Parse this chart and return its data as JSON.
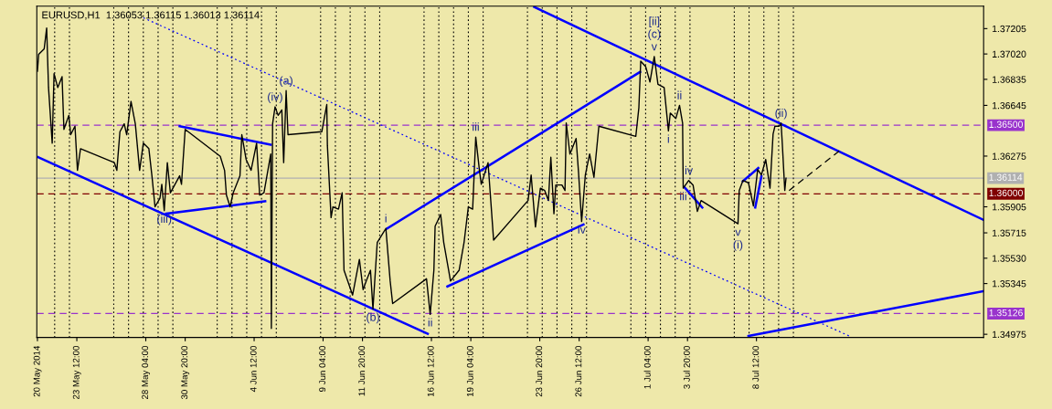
{
  "chart_data": {
    "type": "line",
    "title": "EURUSD,H1  1.36053 1.36115 1.36013 1.36114",
    "xlim": [
      "2014-05-20T19:00",
      "2014-07-23T21:00"
    ],
    "ylim": [
      1.34952,
      1.37369
    ],
    "xticks": [
      {
        "value": "2014-05-20T20:00",
        "label": "20 May 2014"
      },
      {
        "value": "2014-05-23T12:00",
        "label": "23 May 12:00"
      },
      {
        "value": "2014-05-28T04:00",
        "label": "28 May 04:00"
      },
      {
        "value": "2014-05-30T20:00",
        "label": "30 May 20:00"
      },
      {
        "value": "2014-06-04T12:00",
        "label": "4 Jun 12:00"
      },
      {
        "value": "2014-06-09T04:00",
        "label": "9 Jun 04:00"
      },
      {
        "value": "2014-06-11T20:00",
        "label": "11 Jun 20:00"
      },
      {
        "value": "2014-06-16T12:00",
        "label": "16 Jun 12:00"
      },
      {
        "value": "2014-06-19T04:00",
        "label": "19 Jun 04:00"
      },
      {
        "value": "2014-06-23T20:00",
        "label": "23 Jun 20:00"
      },
      {
        "value": "2014-06-26T12:00",
        "label": "26 Jun 12:00"
      },
      {
        "value": "2014-07-01T04:00",
        "label": "1 Jul 04:00"
      },
      {
        "value": "2014-07-03T20:00",
        "label": "3 Jul 20:00"
      },
      {
        "value": "2014-07-08T12:00",
        "label": "8 Jul 12:00"
      }
    ],
    "yticks": [
      1.37205,
      {
        "value": 1.3702,
        "label": "1.37020"
      },
      1.36835,
      1.36645,
      1.36275,
      1.35905,
      1.35715,
      {
        "value": 1.3553,
        "label": "1.35530"
      },
      1.35345,
      1.34975
    ],
    "grid": false,
    "series": [
      {
        "color": "#000000",
        "x": [
          "2014-05-20T20:00",
          "2014-05-20T22:00",
          "2014-05-21T07:00",
          "2014-05-21T11:00",
          "2014-05-21T14:00",
          "2014-05-21T20:00",
          "2014-05-21T23:00",
          "2014-05-22T05:00",
          "2014-05-22T12:00",
          "2014-05-22T15:00",
          "2014-05-22T23:00",
          "2014-05-23T02:00",
          "2014-05-23T09:00",
          "2014-05-23T13:00",
          "2014-05-23T18:00",
          "2014-05-26T01:00",
          "2014-05-26T05:00",
          "2014-05-26T10:00",
          "2014-05-26T17:00",
          "2014-05-26T21:00",
          "2014-05-27T04:00",
          "2014-05-27T11:00",
          "2014-05-27T18:00",
          "2014-05-28T00:00",
          "2014-05-28T09:00",
          "2014-05-28T14:00",
          "2014-05-28T19:00",
          "2014-05-29T03:00",
          "2014-05-29T06:00",
          "2014-05-29T10:00",
          "2014-05-29T15:00",
          "2014-05-29T20:00",
          "2014-05-30T11:00",
          "2014-05-30T14:00",
          "2014-05-30T20:00",
          "2014-06-02T05:00",
          "2014-06-02T12:00",
          "2014-06-02T15:00",
          "2014-06-02T21:00",
          "2014-06-03T02:00",
          "2014-06-03T13:00",
          "2014-06-03T16:00",
          "2014-06-03T23:00",
          "2014-06-04T07:00",
          "2014-06-04T16:00",
          "2014-06-04T21:00",
          "2014-06-05T04:00",
          "2014-06-05T15:00",
          "2014-06-05T16:00",
          "2014-06-05T18:00",
          "2014-06-05T22:00",
          "2014-06-06T03:00",
          "2014-06-06T09:00",
          "2014-06-06T12:00",
          "2014-06-06T16:00",
          "2014-06-06T19:00",
          "2014-06-09T02:00",
          "2014-06-09T10:00",
          "2014-06-09T11:00",
          "2014-06-09T17:00",
          "2014-06-09T20:00",
          "2014-06-10T05:00",
          "2014-06-10T11:00",
          "2014-06-10T14:00",
          "2014-06-11T04:00",
          "2014-06-11T15:00",
          "2014-06-11T21:00",
          "2014-06-12T02:00",
          "2014-06-12T09:00",
          "2014-06-12T13:00",
          "2014-06-12T20:00",
          "2014-06-13T10:00",
          "2014-06-13T17:00",
          "2014-06-13T21:00",
          "2014-06-16T04:00",
          "2014-06-16T10:00",
          "2014-06-16T16:00",
          "2014-06-16T18:00",
          "2014-06-17T03:00",
          "2014-06-17T08:00",
          "2014-06-17T16:00",
          "2014-06-17T19:00",
          "2014-06-18T09:00",
          "2014-06-18T17:00",
          "2014-06-19T00:00",
          "2014-06-19T07:00",
          "2014-06-19T12:00",
          "2014-06-19T18:00",
          "2014-06-19T21:00",
          "2014-06-20T08:00",
          "2014-06-20T17:00",
          "2014-06-23T01:00",
          "2014-06-23T06:00",
          "2014-06-23T13:00",
          "2014-06-23T21:00",
          "2014-06-24T04:00",
          "2014-06-24T10:00",
          "2014-06-24T14:00",
          "2014-06-24T19:00",
          "2014-06-24T22:00",
          "2014-06-25T08:00",
          "2014-06-25T13:00",
          "2014-06-25T15:00",
          "2014-06-25T21:00",
          "2014-06-26T07:00",
          "2014-06-26T11:00",
          "2014-06-26T16:00",
          "2014-06-26T22:00",
          "2014-06-27T05:00",
          "2014-06-27T12:00",
          "2014-06-27T20:00",
          "2014-06-30T08:00",
          "2014-06-30T13:00",
          "2014-06-30T16:00",
          "2014-07-01T00:00",
          "2014-07-01T07:00",
          "2014-07-01T14:00",
          "2014-07-01T20:00",
          "2014-07-02T06:00",
          "2014-07-02T13:00",
          "2014-07-02T16:00",
          "2014-07-03T01:00",
          "2014-07-03T07:00",
          "2014-07-03T12:00",
          "2014-07-03T13:00",
          "2014-07-03T22:00",
          "2014-07-04T05:00",
          "2014-07-04T12:00",
          "2014-07-04T18:00",
          "2014-07-07T06:00",
          "2014-07-07T08:00",
          "2014-07-07T14:00",
          "2014-07-07T23:00",
          "2014-07-08T07:00",
          "2014-07-08T14:00",
          "2014-07-08T20:00",
          "2014-07-09T03:00",
          "2014-07-09T10:00",
          "2014-07-09T15:00",
          "2014-07-09T18:00",
          "2014-07-10T01:00",
          "2014-07-10T04:00",
          "2014-07-10T06:00",
          "2014-07-10T10:00",
          "2014-07-10T12:00"
        ],
        "values": [
          1.36894,
          1.37018,
          1.37058,
          1.3721,
          1.36775,
          1.36369,
          1.36877,
          1.36775,
          1.36855,
          1.3647,
          1.36572,
          1.36431,
          1.36493,
          1.36171,
          1.36329,
          1.36227,
          1.36171,
          1.36453,
          1.3651,
          1.36431,
          1.36674,
          1.3651,
          1.36171,
          1.36369,
          1.36329,
          1.36131,
          1.35905,
          1.35967,
          1.36069,
          1.35877,
          1.36227,
          1.36007,
          1.36131,
          1.36069,
          1.3647,
          1.36273,
          1.36171,
          1.3599,
          1.35905,
          1.36007,
          1.36131,
          1.36431,
          1.3625,
          1.36171,
          1.36369,
          1.3599,
          1.36007,
          1.3629,
          1.35018,
          1.3651,
          1.36634,
          1.36572,
          1.36612,
          1.36227,
          1.36753,
          1.36431,
          1.36453,
          1.36651,
          1.36352,
          1.35826,
          1.35905,
          1.35888,
          1.36007,
          1.35442,
          1.35261,
          1.35521,
          1.35301,
          1.35363,
          1.35442,
          1.3516,
          1.35645,
          1.35747,
          1.35363,
          1.35199,
          1.3538,
          1.3512,
          1.35442,
          1.35764,
          1.35849,
          1.35645,
          1.35442,
          1.35363,
          1.35442,
          1.35645,
          1.35905,
          1.35888,
          1.36414,
          1.36171,
          1.36069,
          1.36227,
          1.35662,
          1.35951,
          1.36137,
          1.35758,
          1.36041,
          1.36024,
          1.35951,
          1.36267,
          1.35854,
          1.36064,
          1.36064,
          1.36024,
          1.36516,
          1.3629,
          1.36403,
          1.36154,
          1.35798,
          1.36137,
          1.3629,
          1.3612,
          1.36493,
          1.36419,
          1.36629,
          1.36968,
          1.36928,
          1.36815,
          1.37001,
          1.36798,
          1.36775,
          1.36459,
          1.36589,
          1.36549,
          1.36645,
          1.36516,
          1.36041,
          1.36097,
          1.36064,
          1.35871,
          1.35951,
          1.35781,
          1.36024,
          1.36097,
          1.3608,
          1.35911,
          1.36177,
          1.36137,
          1.3625,
          1.36041,
          1.36436,
          1.36493,
          1.36493,
          1.36516,
          1.36363,
          1.36024,
          1.36114
        ]
      },
      {
        "color": "#0000ff",
        "x": [
          "2014-05-20T21:00",
          "2014-06-16T06:00"
        ],
        "values": [
          1.36267,
          1.34979
        ]
      },
      {
        "color": "#0000ff",
        "x": [
          "2014-06-23T11:00",
          "2014-07-23T21:00"
        ],
        "values": [
          1.37363,
          1.35809
        ]
      },
      {
        "color": "#0000ff",
        "x": [
          "2014-07-07T23:00",
          "2014-07-23T21:00"
        ],
        "values": [
          1.34962,
          1.3529
        ]
      },
      {
        "color": "#0000ff",
        "x": [
          "2014-06-13T12:00",
          "2014-06-30T15:00"
        ],
        "values": [
          1.35747,
          1.36889
        ]
      },
      {
        "color": "#0000ff",
        "x": [
          "2014-06-17T14:00",
          "2014-06-26T19:00"
        ],
        "values": [
          1.35324,
          1.35776
        ]
      },
      {
        "color": "#0000ff",
        "x": [
          "2014-05-30T11:00",
          "2014-06-05T15:00"
        ],
        "values": [
          1.36493,
          1.36358
        ]
      },
      {
        "color": "#0000ff",
        "x": [
          "2014-05-29T13:00",
          "2014-06-05T06:00"
        ],
        "values": [
          1.35855,
          1.35945
        ]
      },
      {
        "color": "#0000ff",
        "x": [
          "2014-07-03T15:00",
          "2014-07-04T20:00"
        ],
        "values": [
          1.36047,
          1.359
        ]
      },
      {
        "color": "#0000ff",
        "x": [
          "2014-07-07T14:00",
          "2014-07-08T15:00"
        ],
        "values": [
          1.36092,
          1.36188
        ]
      },
      {
        "color": "#0000ff",
        "x": [
          "2014-07-08T10:00",
          "2014-07-08T20:00"
        ],
        "values": [
          1.359,
          1.36126
        ]
      },
      {
        "color": "#0000ff",
        "x": [
          "2014-05-28T00:00",
          "2014-07-14T19:00"
        ],
        "values": [
          1.37284,
          1.34962
        ],
        "line_style": "dotted"
      },
      {
        "color": "#000000",
        "x": [
          "2014-07-10T17:00",
          "2014-07-14T04:00"
        ],
        "values": [
          1.36024,
          1.36318
        ],
        "line_style": "dashed"
      }
    ],
    "ref_lines": [
      {
        "axis": "y",
        "value": 1.365,
        "label": "1.36500",
        "color": "#9933cc",
        "line_style": "dashed"
      },
      {
        "axis": "y",
        "value": 1.36,
        "label": "1.36000",
        "color": "#800000",
        "line_style": "dashed"
      },
      {
        "axis": "y",
        "value": 1.35126,
        "label": "1.35126",
        "color": "#9933cc",
        "line_style": "dashed"
      },
      {
        "axis": "y",
        "value": 1.36114,
        "label": "1.36114",
        "color": "#b0b0b0",
        "line_style": "solid"
      },
      {
        "axis": "x",
        "value": "2014-05-22T00:00",
        "line_style": "dotted",
        "color": "#000000"
      },
      {
        "axis": "x",
        "value": "2014-05-23T00:00",
        "line_style": "dotted",
        "color": "#000000"
      },
      {
        "axis": "x",
        "value": "2014-05-26T00:00",
        "line_style": "dotted",
        "color": "#000000"
      },
      {
        "axis": "x",
        "value": "2014-05-27T00:00",
        "line_style": "dotted",
        "color": "#000000"
      },
      {
        "axis": "x",
        "value": "2014-05-28T00:00",
        "line_style": "dotted",
        "color": "#000000"
      },
      {
        "axis": "x",
        "value": "2014-05-29T00:00",
        "line_style": "dotted",
        "color": "#000000"
      },
      {
        "axis": "x",
        "value": "2014-05-30T00:00",
        "line_style": "dotted",
        "color": "#000000"
      },
      {
        "axis": "x",
        "value": "2014-06-02T00:00",
        "line_style": "dotted",
        "color": "#000000"
      },
      {
        "axis": "x",
        "value": "2014-06-03T00:00",
        "line_style": "dotted",
        "color": "#000000"
      },
      {
        "axis": "x",
        "value": "2014-06-04T00:00",
        "line_style": "dotted",
        "color": "#000000"
      },
      {
        "axis": "x",
        "value": "2014-06-05T00:00",
        "line_style": "dotted",
        "color": "#000000"
      },
      {
        "axis": "x",
        "value": "2014-06-06T00:00",
        "line_style": "dotted",
        "color": "#000000"
      },
      {
        "axis": "x",
        "value": "2014-06-09T00:00",
        "line_style": "dotted",
        "color": "#000000"
      },
      {
        "axis": "x",
        "value": "2014-06-10T00:00",
        "line_style": "dotted",
        "color": "#000000"
      },
      {
        "axis": "x",
        "value": "2014-06-11T00:00",
        "line_style": "dotted",
        "color": "#000000"
      },
      {
        "axis": "x",
        "value": "2014-06-12T00:00",
        "line_style": "dotted",
        "color": "#000000"
      },
      {
        "axis": "x",
        "value": "2014-06-13T00:00",
        "line_style": "dotted",
        "color": "#000000"
      },
      {
        "axis": "x",
        "value": "2014-06-16T00:00",
        "line_style": "dotted",
        "color": "#000000"
      },
      {
        "axis": "x",
        "value": "2014-06-17T00:00",
        "line_style": "dotted",
        "color": "#000000"
      },
      {
        "axis": "x",
        "value": "2014-06-18T00:00",
        "line_style": "dotted",
        "color": "#000000"
      },
      {
        "axis": "x",
        "value": "2014-06-19T00:00",
        "line_style": "dotted",
        "color": "#000000"
      },
      {
        "axis": "x",
        "value": "2014-06-20T00:00",
        "line_style": "dotted",
        "color": "#000000"
      },
      {
        "axis": "x",
        "value": "2014-06-23T00:00",
        "line_style": "dotted",
        "color": "#000000"
      },
      {
        "axis": "x",
        "value": "2014-06-24T00:00",
        "line_style": "dotted",
        "color": "#000000"
      },
      {
        "axis": "x",
        "value": "2014-06-25T00:00",
        "line_style": "dotted",
        "color": "#000000"
      },
      {
        "axis": "x",
        "value": "2014-06-26T00:00",
        "line_style": "dotted",
        "color": "#000000"
      },
      {
        "axis": "x",
        "value": "2014-06-27T00:00",
        "line_style": "dotted",
        "color": "#000000"
      },
      {
        "axis": "x",
        "value": "2014-06-30T00:00",
        "line_style": "dotted",
        "color": "#000000"
      },
      {
        "axis": "x",
        "value": "2014-07-01T00:00",
        "line_style": "dotted",
        "color": "#000000"
      },
      {
        "axis": "x",
        "value": "2014-07-02T00:00",
        "line_style": "dotted",
        "color": "#000000"
      },
      {
        "axis": "x",
        "value": "2014-07-03T00:00",
        "line_style": "dotted",
        "color": "#000000"
      },
      {
        "axis": "x",
        "value": "2014-07-04T00:00",
        "line_style": "dotted",
        "color": "#000000"
      },
      {
        "axis": "x",
        "value": "2014-07-07T00:00",
        "line_style": "dotted",
        "color": "#000000"
      },
      {
        "axis": "x",
        "value": "2014-07-08T00:00",
        "line_style": "dotted",
        "color": "#000000"
      },
      {
        "axis": "x",
        "value": "2014-07-09T00:00",
        "line_style": "dotted",
        "color": "#000000"
      },
      {
        "axis": "x",
        "value": "2014-07-10T00:00",
        "line_style": "dotted",
        "color": "#000000"
      },
      {
        "axis": "x",
        "value": "2014-07-11T00:00",
        "line_style": "dotted",
        "color": "#000000"
      }
    ],
    "annotations": [
      {
        "text": "(a)",
        "x": "2014-06-06T16:00",
        "y": 1.36753
      },
      {
        "text": "(iv)",
        "x": "2014-06-05T22:00",
        "y": 1.36634
      },
      {
        "text": "(iii)",
        "x": "2014-05-29T10:00",
        "y": 1.35877
      },
      {
        "text": "(b)",
        "x": "2014-06-12T13:00",
        "y": 1.3516
      },
      {
        "text": "i",
        "x": "2014-06-13T10:00",
        "y": 1.35747
      },
      {
        "text": "ii",
        "x": "2014-06-16T10:00",
        "y": 1.3512
      },
      {
        "text": "iii",
        "x": "2014-06-19T12:00",
        "y": 1.36414
      },
      {
        "text": "iv",
        "x": "2014-06-26T16:00",
        "y": 1.35798
      },
      {
        "text": "v",
        "x": "2014-07-01T14:00",
        "y": 1.37001
      },
      {
        "text": "(c)",
        "x": "2014-07-01T14:00",
        "y": 1.37001
      },
      {
        "text": "[ii]",
        "x": "2014-07-01T14:00",
        "y": 1.37001
      },
      {
        "text": "ii",
        "x": "2014-07-03T07:00",
        "y": 1.36645
      },
      {
        "text": "i",
        "x": "2014-07-02T13:00",
        "y": 1.36459
      },
      {
        "text": "iv",
        "x": "2014-07-03T22:00",
        "y": 1.36097
      },
      {
        "text": "iii",
        "x": "2014-07-03T13:00",
        "y": 1.36041
      },
      {
        "text": "v",
        "x": "2014-07-07T06:00",
        "y": 1.35781
      },
      {
        "text": "(i)",
        "x": "2014-07-07T06:00",
        "y": 1.35781
      },
      {
        "text": "(ii)",
        "x": "2014-07-10T04:00",
        "y": 1.36516
      }
    ]
  }
}
